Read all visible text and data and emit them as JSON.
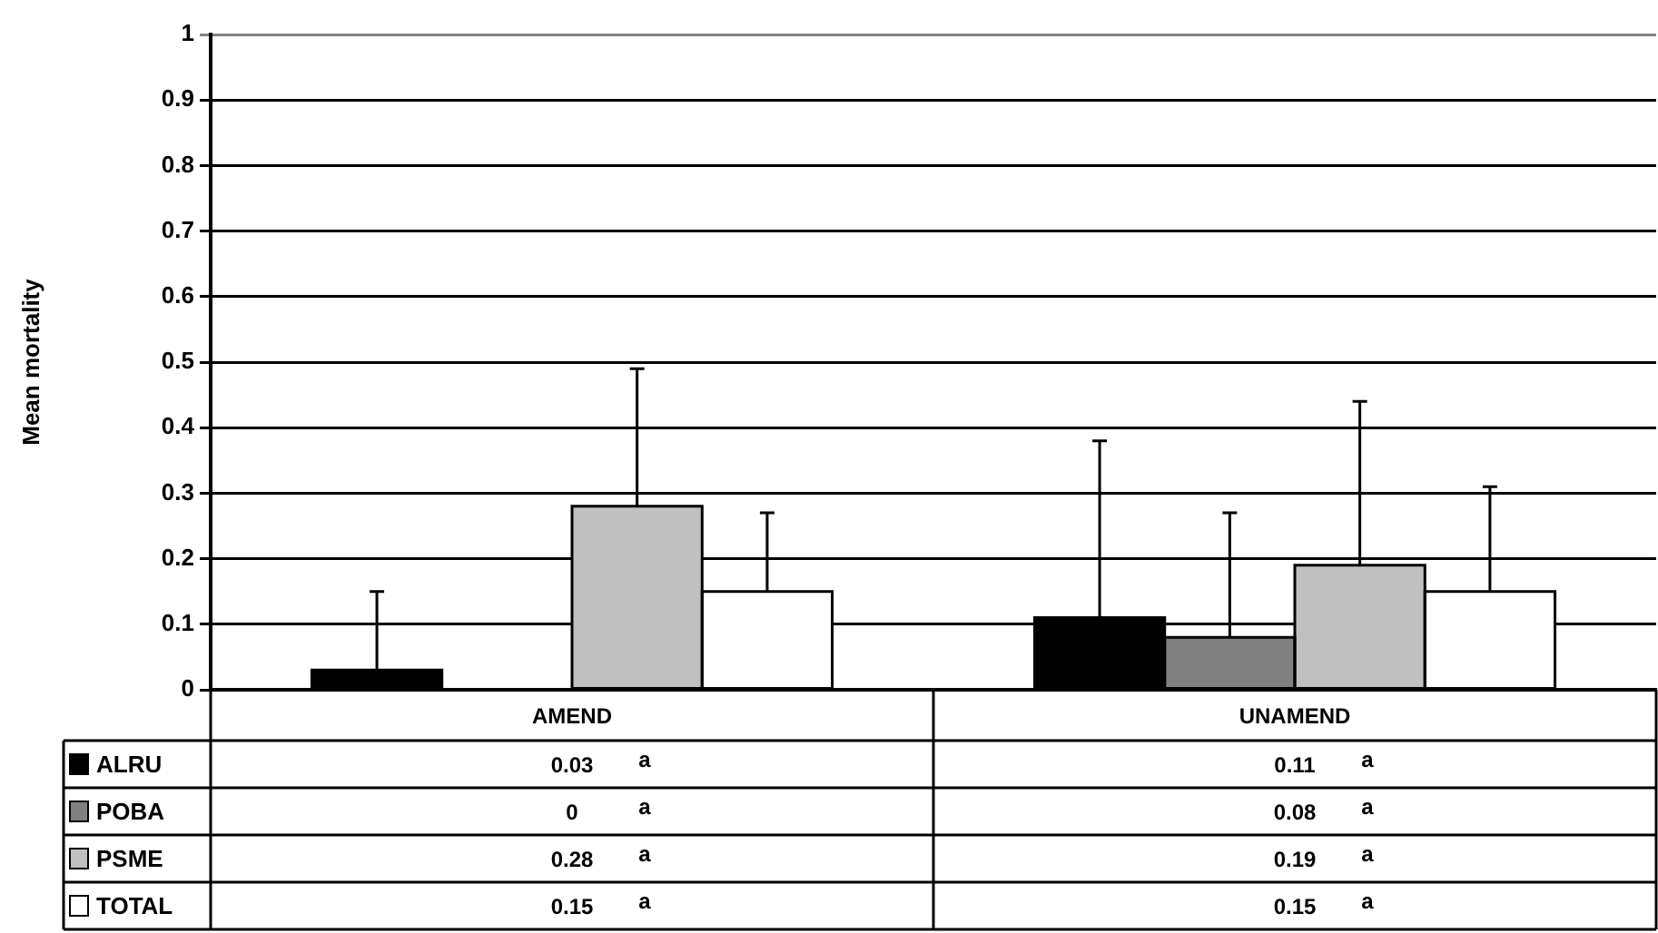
{
  "chart_data": {
    "type": "bar",
    "ylabel": "Mean mortality",
    "categories": [
      "AMEND",
      "UNAMEND"
    ],
    "series": [
      {
        "name": "ALRU",
        "color": "#000000",
        "values": [
          0.03,
          0.11
        ],
        "errors": [
          [
            0.03,
            0.15
          ],
          [
            0.11,
            0.38
          ]
        ]
      },
      {
        "name": "POBA",
        "color": "#808080",
        "values": [
          0,
          0.08
        ],
        "errors": [
          null,
          [
            0.08,
            0.27
          ]
        ]
      },
      {
        "name": "PSME",
        "color": "#c0c0c0",
        "values": [
          0.28,
          0.19
        ],
        "errors": [
          [
            0.28,
            0.49
          ],
          [
            0.19,
            0.44
          ]
        ]
      },
      {
        "name": "TOTAL",
        "color": "#ffffff",
        "values": [
          0.15,
          0.15
        ],
        "errors": [
          [
            0.15,
            0.27
          ],
          [
            0.15,
            0.31
          ]
        ]
      }
    ],
    "ylim": [
      0,
      1
    ],
    "yticks": [
      0,
      0.1,
      0.2,
      0.3,
      0.4,
      0.5,
      0.6,
      0.7,
      0.8,
      0.9,
      1
    ],
    "grid": "y",
    "legend": "bottom left",
    "data_labels": true,
    "annotations": [
      "a",
      "a",
      "a",
      "a",
      "a",
      "a",
      "a",
      "a"
    ]
  }
}
